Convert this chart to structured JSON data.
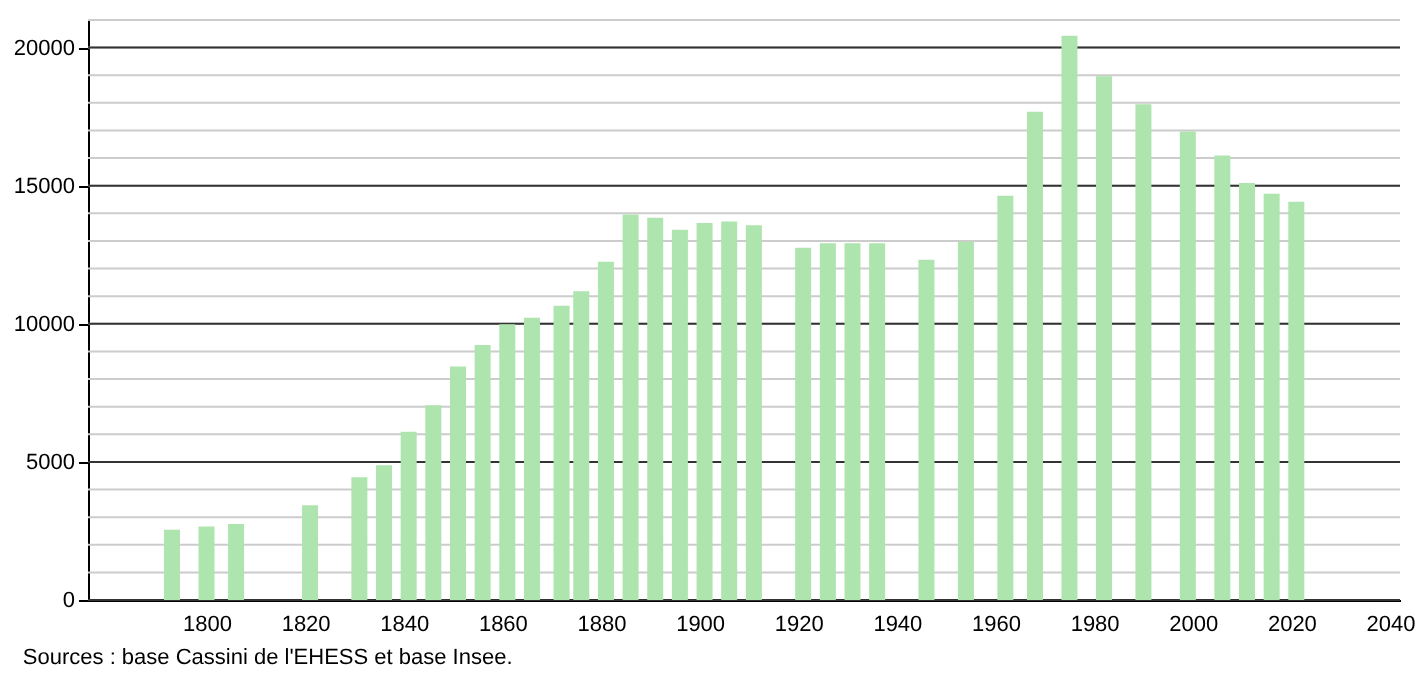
{
  "chart_data": {
    "type": "bar",
    "x": [
      1793,
      1800,
      1806,
      1821,
      1831,
      1836,
      1841,
      1846,
      1851,
      1856,
      1861,
      1866,
      1872,
      1876,
      1881,
      1886,
      1891,
      1896,
      1901,
      1906,
      1911,
      1921,
      1926,
      1931,
      1936,
      1946,
      1954,
      1962,
      1968,
      1975,
      1982,
      1990,
      1999,
      2006,
      2011,
      2016,
      2021
    ],
    "values": [
      2540,
      2660,
      2750,
      3430,
      4440,
      4880,
      6090,
      7050,
      8450,
      9230,
      9980,
      10220,
      10650,
      11180,
      12250,
      13960,
      13840,
      13410,
      13650,
      13700,
      13570,
      12750,
      12920,
      12920,
      12920,
      12320,
      12970,
      14640,
      17680,
      20430,
      18960,
      17950,
      16960,
      16090,
      15100,
      14710,
      14420
    ],
    "color": "#aee4ae",
    "xlim": [
      1778,
      2040
    ],
    "xticks": [
      1800,
      1820,
      1840,
      1860,
      1880,
      1900,
      1920,
      1940,
      1960,
      1980,
      2000,
      2020,
      2040
    ],
    "ylim": [
      0,
      21000
    ],
    "yticks": [
      0,
      5000,
      10000,
      15000,
      20000
    ],
    "grid": "y",
    "annotations": [
      "Sources : base Cassini de l'EHESS et base Insee."
    ]
  }
}
